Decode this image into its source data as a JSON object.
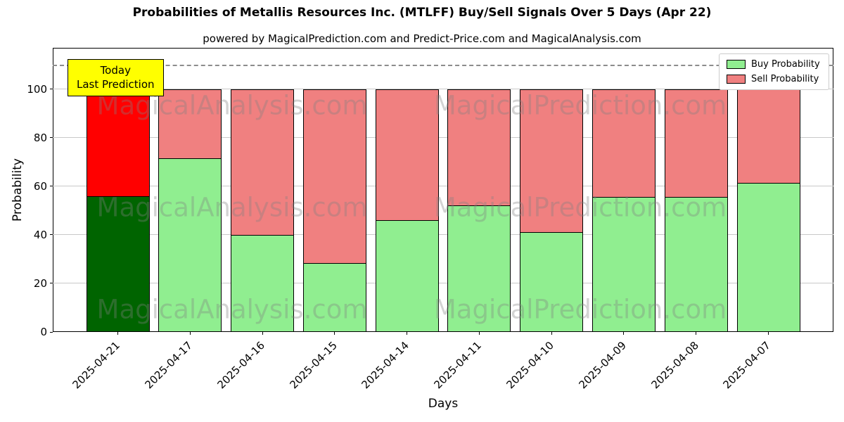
{
  "subtitle": "powered by MagicalPrediction.com and Predict-Price.com and MagicalAnalysis.com",
  "annotation": {
    "line1": "Today",
    "line2": "Last Prediction",
    "bg": "#ffff00"
  },
  "legend": [
    {
      "label": "Buy Probability",
      "color": "#90ee90"
    },
    {
      "label": "Sell Probability",
      "color": "#f08080"
    }
  ],
  "watermarks": [
    "MagicalAnalysis.com",
    "MagicalPrediction.com"
  ],
  "chart_data": {
    "type": "bar",
    "stacked": true,
    "title": "Probabilities of Metallis Resources Inc. (MTLFF) Buy/Sell Signals Over 5 Days (Apr 22)",
    "xlabel": "Days",
    "ylabel": "Probability",
    "categories": [
      "2025-04-21",
      "2025-04-17",
      "2025-04-16",
      "2025-04-15",
      "2025-04-14",
      "2025-04-11",
      "2025-04-10",
      "2025-04-09",
      "2025-04-08",
      "2025-04-07"
    ],
    "series": [
      {
        "name": "Buy Probability",
        "values": [
          56,
          71.5,
          40,
          28.5,
          46,
          52,
          41,
          55.5,
          55.5,
          61.5
        ],
        "colors": [
          "#006400",
          "#90ee90",
          "#90ee90",
          "#90ee90",
          "#90ee90",
          "#90ee90",
          "#90ee90",
          "#90ee90",
          "#90ee90",
          "#90ee90"
        ]
      },
      {
        "name": "Sell Probability",
        "values": [
          44,
          28.5,
          60,
          71.5,
          54,
          48,
          59,
          44.5,
          44.5,
          38.5
        ],
        "colors": [
          "#ff0000",
          "#f08080",
          "#f08080",
          "#f08080",
          "#f08080",
          "#f08080",
          "#f08080",
          "#f08080",
          "#f08080",
          "#f08080"
        ]
      }
    ],
    "yticks": [
      0,
      20,
      40,
      60,
      80,
      100
    ],
    "ylim": [
      0,
      117
    ],
    "dashed_line_y": 110,
    "bar_edge_color": "#000000",
    "grid": true,
    "legend_position": "upper right"
  }
}
